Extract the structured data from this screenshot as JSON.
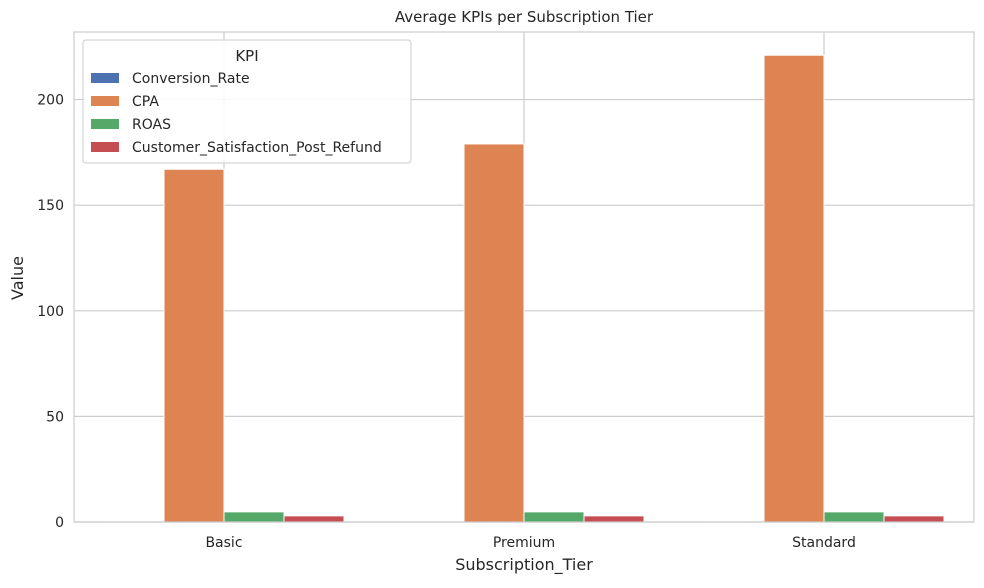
{
  "chart_data": {
    "type": "bar",
    "title": "Average KPIs per Subscription Tier",
    "xlabel": "Subscription_Tier",
    "ylabel": "Value",
    "categories": [
      "Basic",
      "Premium",
      "Standard"
    ],
    "ylim": [
      0,
      232
    ],
    "yticks": [
      0,
      50,
      100,
      150,
      200
    ],
    "grid": true,
    "legend": {
      "title": "KPI",
      "placement": "top-left"
    },
    "series": [
      {
        "name": "Conversion_Rate",
        "color": "#4c72b0",
        "values": [
          0.1,
          0.1,
          0.1
        ]
      },
      {
        "name": "CPA",
        "color": "#dd8452",
        "values": [
          167,
          179,
          221
        ]
      },
      {
        "name": "ROAS",
        "color": "#55a868",
        "values": [
          4.8,
          4.8,
          4.8
        ]
      },
      {
        "name": "Customer_Satisfaction_Post_Refund",
        "color": "#c44e52",
        "values": [
          2.9,
          2.9,
          2.9
        ]
      }
    ]
  }
}
